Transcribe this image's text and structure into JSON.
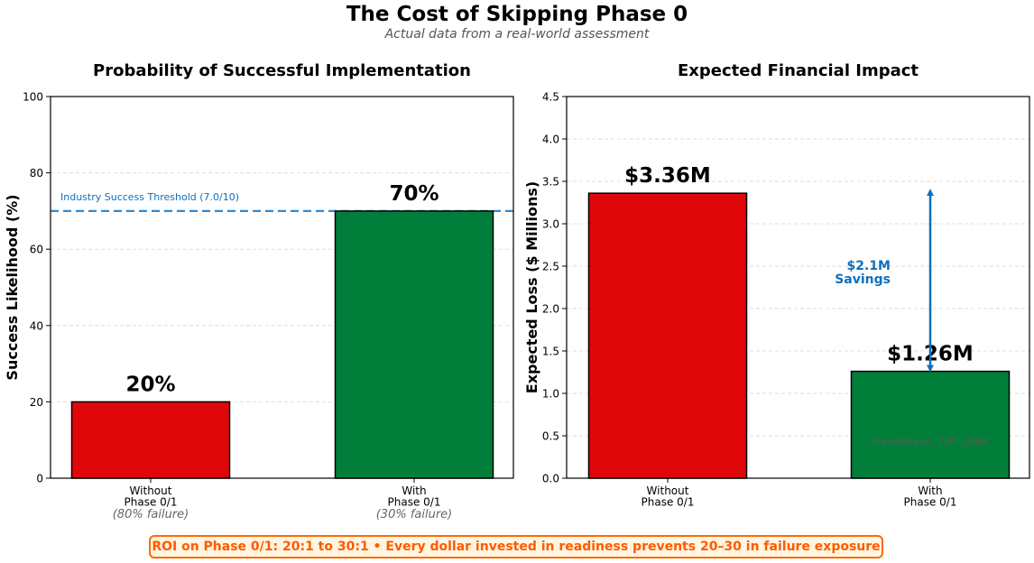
{
  "header": {
    "title": "The Cost of Skipping Phase 0",
    "subtitle": "Actual data from a real-world assessment"
  },
  "banner": "ROI on Phase 0/1: 20:1 to 30:1  •  Every dollar invested in readiness prevents 20–30 in failure exposure",
  "colors": {
    "red": "#e0070b",
    "green": "#007e3a",
    "blue": "#0f6fbd",
    "orange": "#ff6a00"
  },
  "chart_data": [
    {
      "type": "bar",
      "title": "Probability of Successful Implementation",
      "ylabel": "Success Likelihood (%)",
      "ylim": [
        0,
        100
      ],
      "yticks": [
        "0",
        "20",
        "40",
        "60",
        "80",
        "100"
      ],
      "ytick_values": [
        0,
        20,
        40,
        60,
        80,
        100
      ],
      "categories": [
        {
          "lines": [
            "Without",
            "Phase 0/1"
          ],
          "note": "(80% failure)"
        },
        {
          "lines": [
            "With",
            "Phase 0/1"
          ],
          "note": "(30% failure)"
        }
      ],
      "values": [
        20,
        70
      ],
      "value_labels": [
        "20%",
        "70%"
      ],
      "bar_colors": [
        "#e0070b",
        "#007e3a"
      ],
      "reference_line": {
        "value": 70,
        "label": "Industry Success Threshold (7.0/10)"
      },
      "grid": true
    },
    {
      "type": "bar",
      "title": "Expected Financial Impact",
      "ylabel": "Expected Loss ($ Millions)",
      "ylim": [
        0,
        4.5
      ],
      "yticks": [
        "0.0",
        "0.5",
        "1.0",
        "1.5",
        "2.0",
        "2.5",
        "3.0",
        "3.5",
        "4.0",
        "4.5"
      ],
      "ytick_values": [
        0,
        0.5,
        1.0,
        1.5,
        2.0,
        2.5,
        3.0,
        3.5,
        4.0,
        4.5
      ],
      "categories": [
        {
          "lines": [
            "Without",
            "Phase 0/1"
          ]
        },
        {
          "lines": [
            "With",
            "Phase 0/1"
          ]
        }
      ],
      "values": [
        3.36,
        1.26
      ],
      "value_labels": [
        "$3.36M",
        "$1.26M"
      ],
      "bar_colors": [
        "#e0070b",
        "#007e3a"
      ],
      "annotations": {
        "savings_lines": [
          "$2.1M",
          "Savings"
        ],
        "arrow_from": 1.26,
        "arrow_to": 3.36,
        "investment_note": "Investment: 75K–100K"
      },
      "grid": true
    }
  ]
}
